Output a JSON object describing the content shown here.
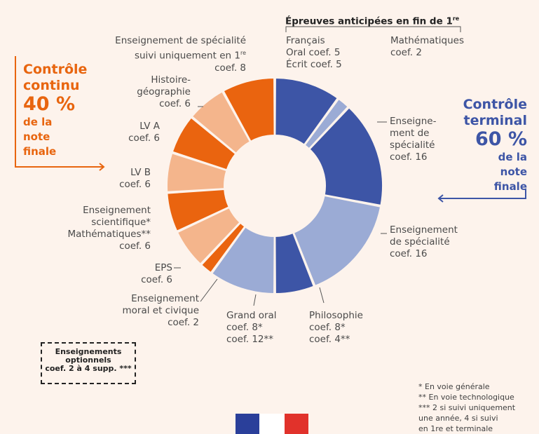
{
  "colors": {
    "orange_dark": "#ea640f",
    "orange_light": "#f4b58c",
    "blue_dark": "#3d55a6",
    "blue_light": "#9babd5",
    "continu_text": "#e8650f",
    "terminal_text": "#3d55a6"
  },
  "controle_continu": {
    "title_line1": "Contrôle",
    "title_line2": "continu",
    "pct": "40 %",
    "sub1": "de la",
    "sub2": "note",
    "sub3": "finale"
  },
  "controle_terminal": {
    "title_line1": "Contrôle",
    "title_line2": "terminal",
    "pct": "60 %",
    "sub1": "de la",
    "sub2": "note",
    "sub3": "finale"
  },
  "epreuves_title": "Épreuves anticipées en fin de 1",
  "epreuves_title_sup": "re",
  "labels": {
    "francais": [
      "Français",
      "Oral coef. 5",
      "Écrit coef. 5"
    ],
    "maths": [
      "Mathématiques",
      "coef. 2"
    ],
    "spe16a": [
      "Enseigne-",
      "ment de",
      "spécialité",
      "coef. 16"
    ],
    "spe16b": [
      "Enseignement",
      "de spécialité",
      "coef. 16"
    ],
    "philo": [
      "Philosophie",
      "coef. 8*",
      "coef. 4**"
    ],
    "grand_oral": [
      "Grand oral",
      "coef. 8*",
      "coef. 12**"
    ],
    "emc": [
      "Enseignement",
      "moral et civique",
      "coef. 2"
    ],
    "eps": [
      "EPS",
      "coef. 6"
    ],
    "sci": [
      "Enseignement",
      "scientifique*",
      "Mathématiques**",
      "coef. 6"
    ],
    "lvb": [
      "LV B",
      "coef. 6"
    ],
    "lva": [
      "LV A",
      "coef. 6"
    ],
    "histgeo": [
      "Histoire-",
      "géographie",
      "coef. 6"
    ],
    "spe8": [
      "Enseignement de spécialité",
      "suivi uniquement en 1",
      "coef. 8"
    ],
    "spe8_sup": "re"
  },
  "optional": {
    "line1": "Enseignements",
    "line2": "optionnels",
    "line3": "coef. 2 à 4 supp. ***"
  },
  "footnotes": [
    "* En voie générale",
    "** En voie technologique",
    "*** 2 si suivi uniquement",
    "une année, 4 si suivi",
    "en 1re et terminale"
  ],
  "chart_data": {
    "type": "pie",
    "donut": true,
    "series": [
      {
        "label": "Français",
        "value": 10,
        "color": "#3d55a6"
      },
      {
        "label": "Mathématiques",
        "value": 2,
        "color": "#9babd5"
      },
      {
        "label": "Enseignement de spécialité",
        "value": 16,
        "color": "#3d55a6"
      },
      {
        "label": "Enseignement de spécialité",
        "value": 16,
        "color": "#9babd5"
      },
      {
        "label": "Philosophie",
        "value": 6,
        "color": "#3d55a6"
      },
      {
        "label": "Grand oral",
        "value": 10,
        "color": "#9babd5"
      },
      {
        "label": "Enseignement moral et civique",
        "value": 2,
        "color": "#ea640f"
      },
      {
        "label": "EPS",
        "value": 6,
        "color": "#f4b58c"
      },
      {
        "label": "Enseignement scientifique / Mathématiques",
        "value": 6,
        "color": "#ea640f"
      },
      {
        "label": "LV B",
        "value": 6,
        "color": "#f4b58c"
      },
      {
        "label": "LV A",
        "value": 6,
        "color": "#ea640f"
      },
      {
        "label": "Histoire-géographie",
        "value": 6,
        "color": "#f4b58c"
      },
      {
        "label": "Enseignement de spécialité suivi uniquement en 1re",
        "value": 8,
        "color": "#ea640f"
      }
    ]
  }
}
